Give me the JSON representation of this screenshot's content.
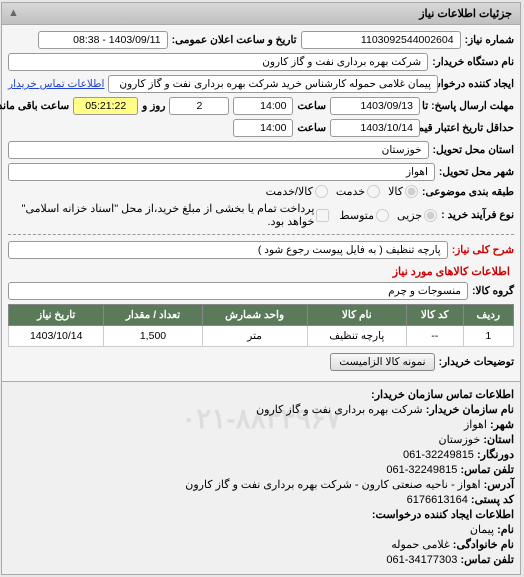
{
  "panel": {
    "title": "جزئیات اطلاعات نیاز",
    "collapse_glyph": "▲"
  },
  "fields": {
    "need_no_label": "شماره نیاز:",
    "need_no": "1103092544002604",
    "announce_label": "تاریخ و ساعت اعلان عمومی:",
    "announce_value": "1403/09/11 - 08:38",
    "buyer_org_label": "نام دستگاه خریدار:",
    "buyer_org": "شرکت بهره برداری نفت و گاز کارون",
    "creator_label": "ایجاد کننده درخواست:",
    "creator_value": "پیمان غلامی حموله کارشناس خرید شرکت بهره برداری نفت و گاز کارون",
    "buyer_contact_link": "اطلاعات تماس خریدار",
    "deadline_label": "مهلت ارسال پاسخ: تا تاریخ:",
    "deadline_date": "1403/09/13",
    "time_label": "ساعت",
    "deadline_time": "14:00",
    "days_label": "روز و",
    "days_value": "2",
    "remaining_label": "ساعت باقی مانده",
    "remaining_time": "05:21:22",
    "validity_label": "حداقل تاریخ اعتبار قیمت: تا تاریخ:",
    "validity_date": "1403/10/14",
    "validity_time": "14:00",
    "province_label": "استان محل تحویل:",
    "province_value": "خوزستان",
    "city_label": "شهر محل تحویل:",
    "city_value": "اهواز",
    "subject_cat_label": "طبقه بندی موضوعی:",
    "radio_kala": "کالا",
    "radio_service": "خدمت",
    "radio_kala_service": "کالا/خدمت",
    "process_label": "نوع فرآیند خرید :",
    "radio_jozi": "جزیی",
    "radio_medium": "متوسط",
    "checkbox_label": "پرداخت تمام یا بخشی از مبلغ خرید،از محل \"اسناد خزانه اسلامی\" خواهد بود.",
    "need_desc_label": "شرح کلی نیاز:",
    "need_desc_value": "پارچه تنظیف ( به فایل پیوست رجوع شود )"
  },
  "items_section_title": "اطلاعات کالاهای مورد نیاز",
  "group_label": "گروه کالا:",
  "group_value": "منسوجات و چرم",
  "table": {
    "headers": [
      "ردیف",
      "کد کالا",
      "نام کالا",
      "واحد شمارش",
      "تعداد / مقدار",
      "تاریخ نیاز"
    ],
    "rows": [
      [
        "1",
        "--",
        "پارچه تنظیف",
        "متر",
        "1,500",
        "1403/10/14"
      ]
    ]
  },
  "notes_label": "توضیحات خریدار:",
  "btn_sample": "نمونه کالا الزامیست",
  "contact": {
    "header": "اطلاعات تماس سازمان خریدار:",
    "org_label": "نام سازمان خریدار:",
    "org": "شرکت بهره برداری نفت و گاز کارون",
    "city_label": "شهر:",
    "city": "اهواز",
    "province_label": "استان:",
    "province": "خوزستان",
    "fax_label": "دورنگار:",
    "fax": "32249815-061",
    "tel_label": "تلفن تماس:",
    "tel": "32249815-061",
    "addr_label": "آدرس:",
    "addr": "اهواز - ناحیه صنعتی کارون - شرکت بهره برداری نفت و گاز کارون",
    "post_label": "کد پستی:",
    "post": "6176613164",
    "creator2_label": "اطلاعات ایجاد کننده درخواست:",
    "name_label": "نام:",
    "name": "پیمان",
    "family_label": "نام خانوادگی:",
    "family": "غلامی حموله",
    "tel2_label": "تلفن تماس:",
    "tel2": "34177303-061"
  },
  "watermark": "۰۲۱-۸۸۳۴۹۶۷"
}
